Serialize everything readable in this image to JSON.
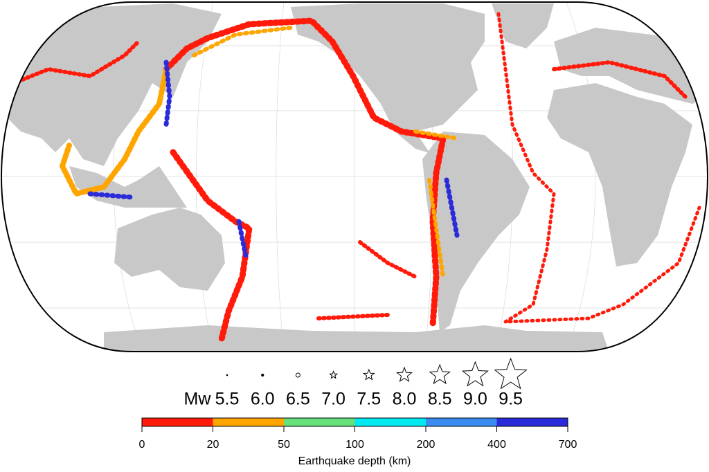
{
  "legend": {
    "title": "Mw",
    "magnitudes": [
      "5.5",
      "6.0",
      "6.5",
      "7.0",
      "7.5",
      "8.0",
      "8.5",
      "9.0",
      "9.5"
    ]
  },
  "colorbar": {
    "ticks": [
      "0",
      "20",
      "50",
      "100",
      "200",
      "400",
      "700"
    ],
    "colors": [
      "#ff1a0a",
      "#ffa500",
      "#66e07a",
      "#00e8f0",
      "#3b8cf0",
      "#2b2bd9"
    ],
    "label": "Earthquake depth (km)"
  }
}
